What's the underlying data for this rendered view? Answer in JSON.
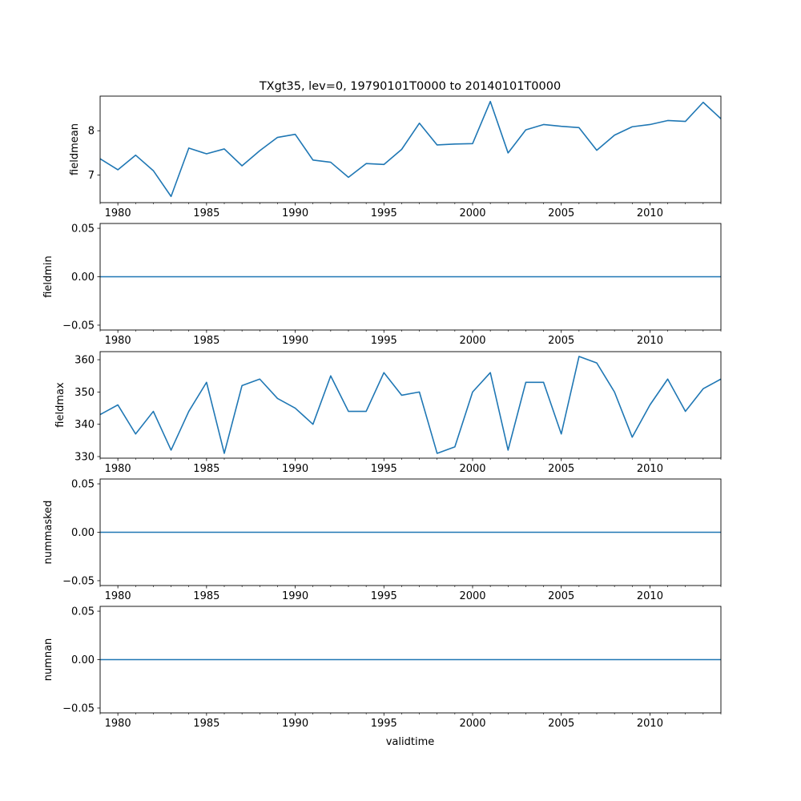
{
  "figure": {
    "title": "TXgt35, lev=0, 19790101T0000 to 20140101T0000",
    "xlabel": "validtime",
    "line_color": "#1f77b4"
  },
  "chart_data": [
    {
      "type": "line",
      "name": "fieldmean",
      "ylabel": "fieldmean",
      "x": [
        1979,
        1980,
        1981,
        1982,
        1983,
        1984,
        1985,
        1986,
        1987,
        1988,
        1989,
        1990,
        1991,
        1992,
        1993,
        1994,
        1995,
        1996,
        1997,
        1998,
        1999,
        2000,
        2001,
        2002,
        2003,
        2004,
        2005,
        2006,
        2007,
        2008,
        2009,
        2010,
        2011,
        2012,
        2013,
        2014
      ],
      "values": [
        7.37,
        7.12,
        7.45,
        7.1,
        6.52,
        7.61,
        7.48,
        7.59,
        7.21,
        7.55,
        7.85,
        7.92,
        7.34,
        7.29,
        6.95,
        7.26,
        7.24,
        7.58,
        8.17,
        7.68,
        7.7,
        7.71,
        8.66,
        7.5,
        8.02,
        8.14,
        8.1,
        8.07,
        7.56,
        7.9,
        8.09,
        8.14,
        8.23,
        8.21,
        8.64,
        8.27
      ],
      "xlim": [
        1979,
        2014
      ],
      "ylim": [
        6.38,
        8.78
      ],
      "yticks": [
        7,
        8
      ],
      "yticklabels": [
        "7",
        "8"
      ],
      "xticks": [
        1980,
        1985,
        1990,
        1995,
        2000,
        2005,
        2010
      ],
      "xticklabels": [
        "1980",
        "1985",
        "1990",
        "1995",
        "2000",
        "2005",
        "2010"
      ]
    },
    {
      "type": "line",
      "name": "fieldmin",
      "ylabel": "fieldmin",
      "x": [
        1979,
        2014
      ],
      "values": [
        0,
        0
      ],
      "xlim": [
        1979,
        2014
      ],
      "ylim": [
        -0.055,
        0.055
      ],
      "yticks": [
        -0.05,
        0,
        0.05
      ],
      "yticklabels": [
        "−0.05",
        "0.00",
        "0.05"
      ],
      "xticks": [
        1980,
        1985,
        1990,
        1995,
        2000,
        2005,
        2010
      ],
      "xticklabels": [
        "1980",
        "1985",
        "1990",
        "1995",
        "2000",
        "2005",
        "2010"
      ]
    },
    {
      "type": "line",
      "name": "fieldmax",
      "ylabel": "fieldmax",
      "x": [
        1979,
        1980,
        1981,
        1982,
        1983,
        1984,
        1985,
        1986,
        1987,
        1988,
        1989,
        1990,
        1991,
        1992,
        1993,
        1994,
        1995,
        1996,
        1997,
        1998,
        1999,
        2000,
        2001,
        2002,
        2003,
        2004,
        2005,
        2006,
        2007,
        2008,
        2009,
        2010,
        2011,
        2012,
        2013,
        2014
      ],
      "values": [
        343,
        346,
        337,
        344,
        332,
        344,
        353,
        331,
        352,
        354,
        348,
        345,
        340,
        355,
        344,
        344,
        356,
        349,
        350,
        331,
        333,
        350,
        356,
        332,
        353,
        353,
        337,
        361,
        359,
        350,
        336,
        346,
        354,
        344,
        351,
        354
      ],
      "xlim": [
        1979,
        2014
      ],
      "ylim": [
        329.5,
        362.5
      ],
      "yticks": [
        330,
        340,
        350,
        360
      ],
      "yticklabels": [
        "330",
        "340",
        "350",
        "360"
      ],
      "xticks": [
        1980,
        1985,
        1990,
        1995,
        2000,
        2005,
        2010
      ],
      "xticklabels": [
        "1980",
        "1985",
        "1990",
        "1995",
        "2000",
        "2005",
        "2010"
      ]
    },
    {
      "type": "line",
      "name": "nummasked",
      "ylabel": "nummasked",
      "x": [
        1979,
        2014
      ],
      "values": [
        0,
        0
      ],
      "xlim": [
        1979,
        2014
      ],
      "ylim": [
        -0.055,
        0.055
      ],
      "yticks": [
        -0.05,
        0,
        0.05
      ],
      "yticklabels": [
        "−0.05",
        "0.00",
        "0.05"
      ],
      "xticks": [
        1980,
        1985,
        1990,
        1995,
        2000,
        2005,
        2010
      ],
      "xticklabels": [
        "1980",
        "1985",
        "1990",
        "1995",
        "2000",
        "2005",
        "2010"
      ]
    },
    {
      "type": "line",
      "name": "numnan",
      "ylabel": "numnan",
      "x": [
        1979,
        2014
      ],
      "values": [
        0,
        0
      ],
      "xlim": [
        1979,
        2014
      ],
      "ylim": [
        -0.055,
        0.055
      ],
      "yticks": [
        -0.05,
        0,
        0.05
      ],
      "yticklabels": [
        "−0.05",
        "0.00",
        "0.05"
      ],
      "xticks": [
        1980,
        1985,
        1990,
        1995,
        2000,
        2005,
        2010
      ],
      "xticklabels": [
        "1980",
        "1985",
        "1990",
        "1995",
        "2000",
        "2005",
        "2010"
      ]
    }
  ]
}
